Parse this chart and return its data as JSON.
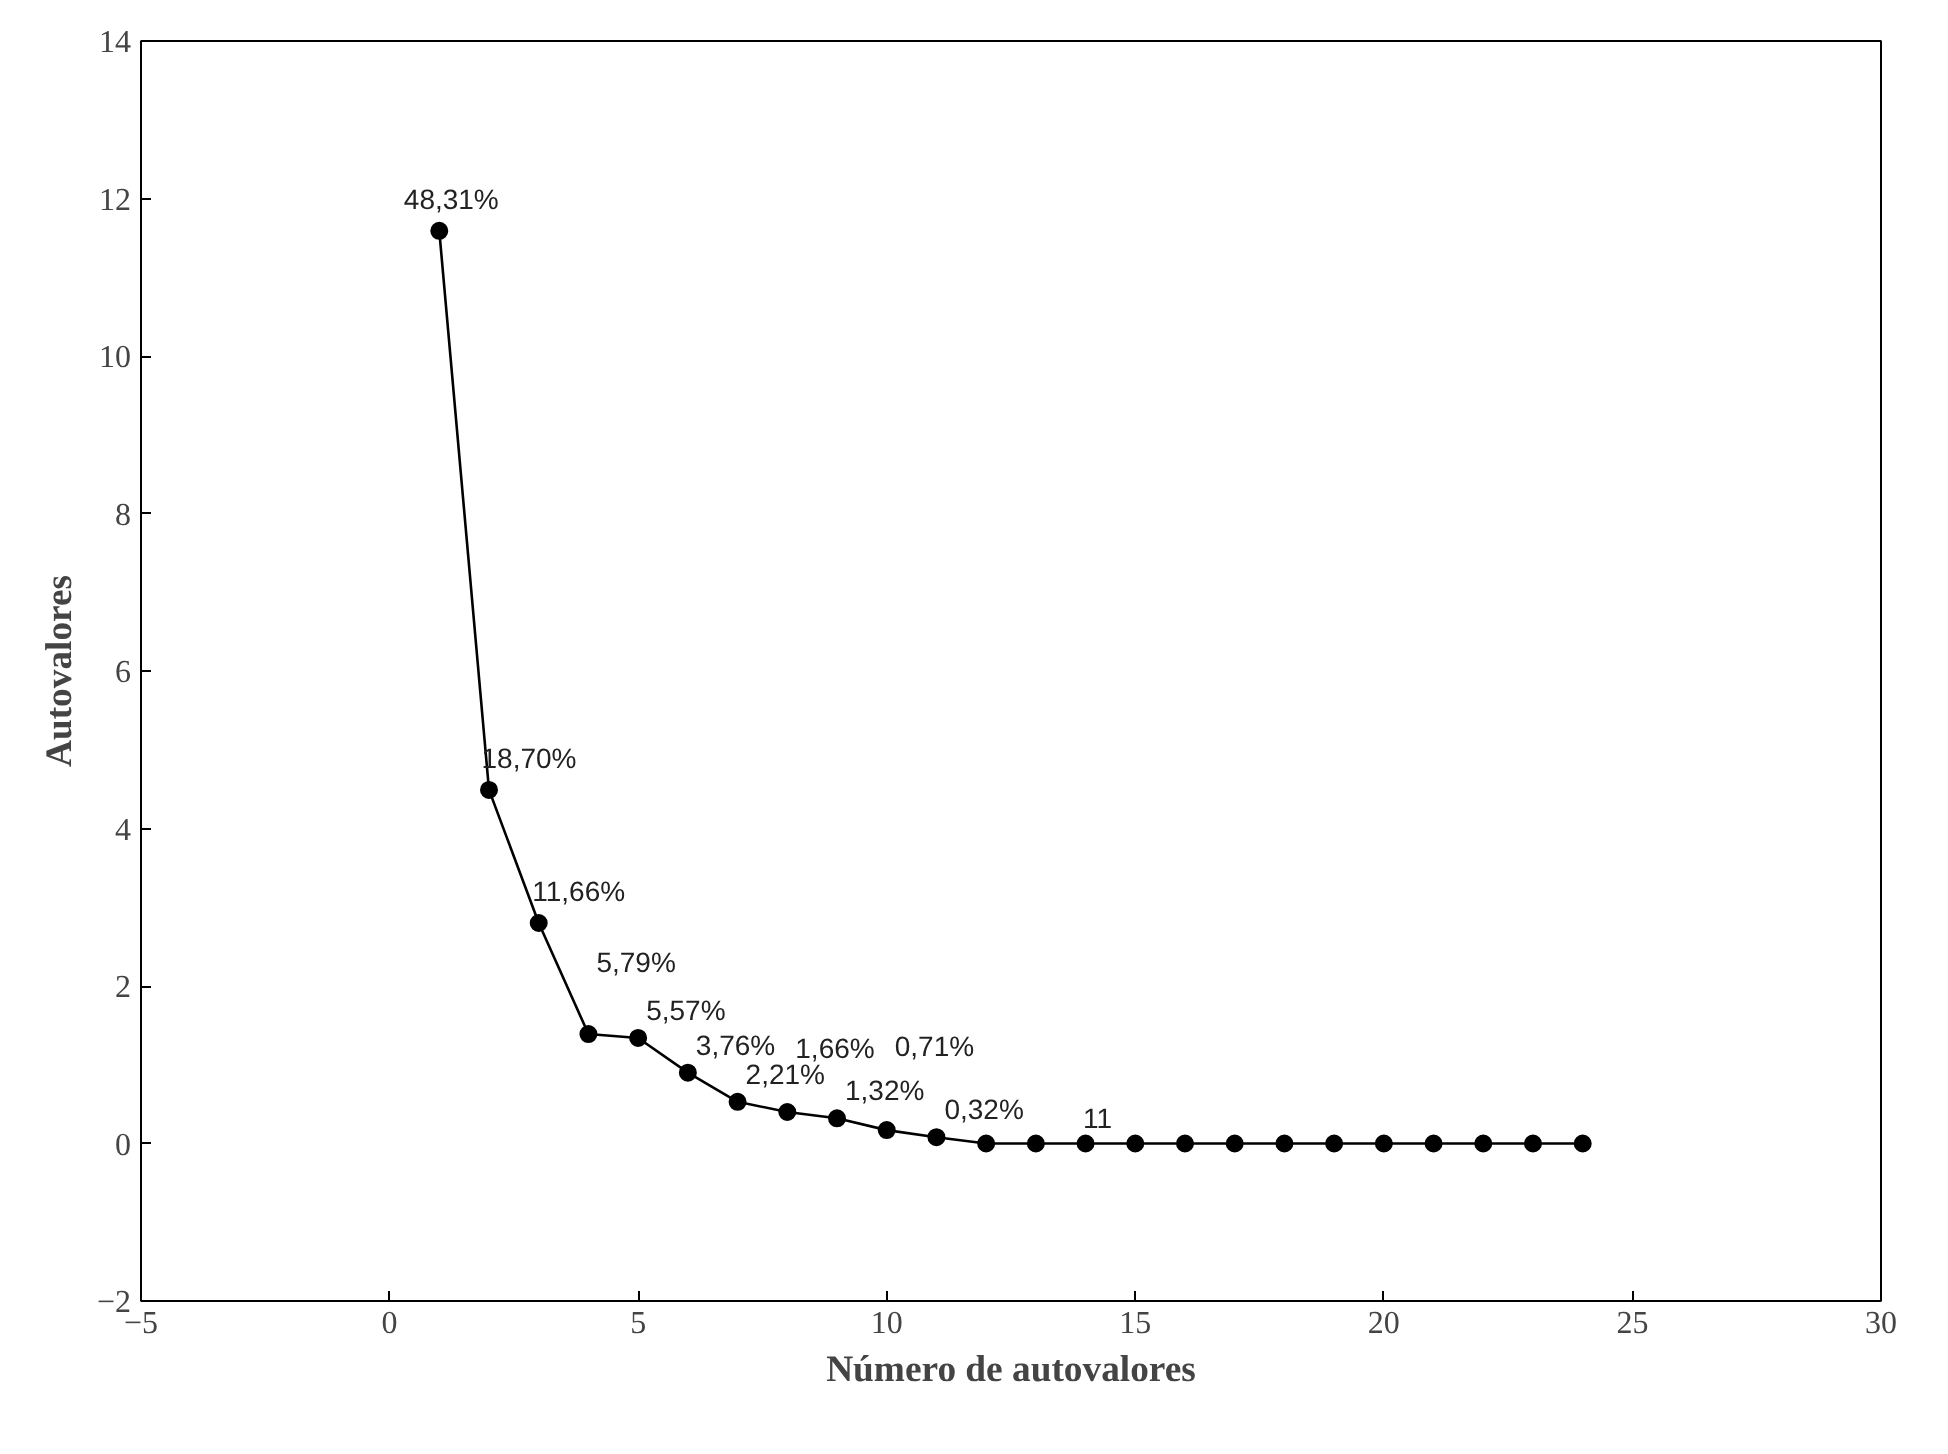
{
  "chart_data": {
    "type": "line",
    "xlabel": "Número de autovalores",
    "ylabel": "Autovalores",
    "x": [
      1,
      2,
      3,
      4,
      5,
      6,
      7,
      8,
      9,
      10,
      11,
      12,
      13,
      14,
      15,
      16,
      17,
      18,
      19,
      20,
      21,
      22,
      23,
      24
    ],
    "series": [
      {
        "color": "#000000",
        "values": [
          11.59,
          4.49,
          2.8,
          1.39,
          1.34,
          0.9,
          0.53,
          0.4,
          0.32,
          0.17,
          0.08,
          0,
          0,
          0,
          0,
          0,
          0,
          0,
          0,
          0,
          0,
          0,
          0,
          0
        ]
      }
    ],
    "annotations": [
      {
        "text": "48,31%",
        "x": 1,
        "y": 11.59
      },
      {
        "text": "18,70%",
        "x": 2,
        "y": 4.49
      },
      {
        "text": "11,66%",
        "x": 3,
        "y": 2.8
      },
      {
        "text": "5,79%",
        "x": 4,
        "y": 1.39
      },
      {
        "text": "5,57%",
        "x": 5,
        "y": 1.34
      },
      {
        "text": "3,76%",
        "x": 6,
        "y": 0.9
      },
      {
        "text": "2,21%",
        "x": 7,
        "y": 0.53
      },
      {
        "text": "1,66%",
        "x": 8,
        "y": 0.4
      },
      {
        "text": "1,32%",
        "x": 9,
        "y": 0.32
      },
      {
        "text": "0,71%",
        "x": 10,
        "y": 0.17
      },
      {
        "text": "0,32%",
        "x": 11,
        "y": 0.08
      },
      {
        "text": "11",
        "x": 14,
        "y": 0
      }
    ],
    "xlim": [
      -5,
      30
    ],
    "xticks": [
      -5,
      0,
      5,
      10,
      15,
      20,
      25,
      30
    ],
    "ylim": [
      -2,
      14
    ],
    "yticks": [
      -2,
      0,
      2,
      4,
      6,
      8,
      10,
      12,
      14
    ],
    "grid": false,
    "marker": "circle",
    "line_style": "solid"
  }
}
